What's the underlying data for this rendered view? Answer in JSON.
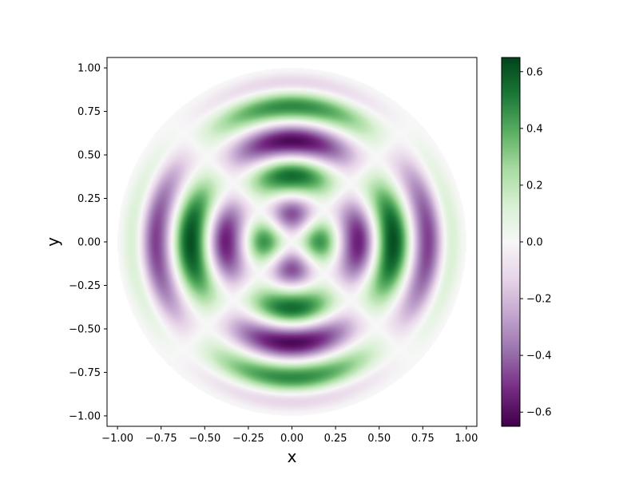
{
  "chart_data": {
    "type": "heatmap",
    "title": "",
    "xlabel": "x",
    "ylabel": "y",
    "xlim": [
      -1.06,
      1.06
    ],
    "ylim": [
      -1.06,
      1.06
    ],
    "domain_shape": "unit disk",
    "x_ticks": [
      "−1.00",
      "−0.75",
      "−0.50",
      "−0.25",
      "0.00",
      "0.25",
      "0.50",
      "0.75",
      "1.00"
    ],
    "x_tick_values": [
      -1.0,
      -0.75,
      -0.5,
      -0.25,
      0.0,
      0.25,
      0.5,
      0.75,
      1.0
    ],
    "y_ticks": [
      "−1.00",
      "−0.75",
      "−0.50",
      "−0.25",
      "0.00",
      "0.25",
      "0.50",
      "0.75",
      "1.00"
    ],
    "y_tick_values": [
      -1.0,
      -0.75,
      -0.5,
      -0.25,
      0.0,
      0.25,
      0.5,
      0.75,
      1.0
    ],
    "colormap": "PRGn",
    "colormap_stops": [
      "#40004b",
      "#762a83",
      "#9970ab",
      "#c2a5cf",
      "#e7d4e8",
      "#f7f7f7",
      "#d9f0d3",
      "#a6dba0",
      "#5aae61",
      "#1b7837",
      "#00441b"
    ],
    "color_range": [
      -0.65,
      0.65
    ],
    "colorbar_ticks": [
      "−0.6",
      "−0.4",
      "−0.2",
      "0.0",
      "0.2",
      "0.4",
      "0.6"
    ],
    "colorbar_tick_values": [
      -0.6,
      -0.4,
      -0.2,
      0.0,
      0.2,
      0.4,
      0.6
    ],
    "field": {
      "description_of_pattern": "angular mode cos(2θ) times radial oscillation",
      "angular_order": 2,
      "radial_extrema": [
        {
          "r": 0.0,
          "value_on_x_axis": 0.0
        },
        {
          "r": 0.16,
          "value_on_x_axis": 0.45
        },
        {
          "r": 0.38,
          "value_on_x_axis": -0.55
        },
        {
          "r": 0.58,
          "value_on_x_axis": 0.62
        },
        {
          "r": 0.78,
          "value_on_x_axis": -0.48
        },
        {
          "r": 0.92,
          "value_on_x_axis": 0.12
        },
        {
          "r": 1.0,
          "value_on_x_axis": 0.0
        }
      ]
    },
    "grid": false,
    "legend": "colorbar-right"
  }
}
